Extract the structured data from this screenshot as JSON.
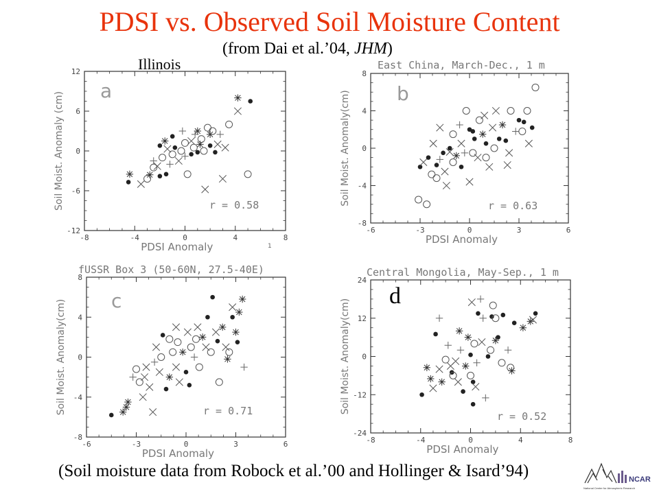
{
  "page": {
    "title": "PDSI vs. Observed Soil Moisture Content",
    "subtitle_prefix": "(from Dai et al.’04, ",
    "subtitle_journal": "JHM",
    "subtitle_suffix": ")",
    "footer": "(Soil moisture data from Robock et al.’00 and Hollinger & Isard’94)",
    "logo_label": "NCAR",
    "logo_subtext": "National Center for Atmospheric Research",
    "colors": {
      "title": "#e8330c",
      "marks": "#222222",
      "axes": "#333333",
      "labels": "#777777"
    }
  },
  "chart_data": [
    {
      "type": "scatter",
      "id": "a",
      "panel_letter": "a",
      "title": "",
      "region_label": "Illinois",
      "xlabel": "PDSI Anomaly",
      "ylabel": "Soil Moist. Anomaly (cm)",
      "xlim": [
        -8,
        8
      ],
      "ylim": [
        -12,
        12
      ],
      "xticks": [
        -8,
        -4,
        0,
        4,
        8
      ],
      "yticks": [
        -12,
        -6,
        0,
        6,
        12
      ],
      "r_label": "r = 0.58",
      "stray_label": "1",
      "grid": false,
      "points": [
        [
          -4.5,
          -4.7,
          "dot"
        ],
        [
          -4.4,
          -3.5,
          "star"
        ],
        [
          -3.5,
          -5.0,
          "x"
        ],
        [
          -3.0,
          -4.2,
          "o"
        ],
        [
          -2.8,
          -3.6,
          "star"
        ],
        [
          -2.5,
          -2.5,
          "o"
        ],
        [
          -2.5,
          -1.5,
          "plus"
        ],
        [
          -2.2,
          -2.3,
          "x"
        ],
        [
          -2.0,
          -3.8,
          "dot"
        ],
        [
          -1.8,
          -1.0,
          "o"
        ],
        [
          -1.6,
          1.5,
          "star"
        ],
        [
          -1.5,
          -3.5,
          "dot"
        ],
        [
          -1.2,
          -2.0,
          "plus"
        ],
        [
          -1.0,
          -0.5,
          "o"
        ],
        [
          -0.8,
          0.5,
          "dot"
        ],
        [
          -0.5,
          -1.5,
          "x"
        ],
        [
          -0.3,
          0.0,
          "o"
        ],
        [
          0.0,
          -0.8,
          "plus"
        ],
        [
          0.2,
          -3.5,
          "o"
        ],
        [
          0.5,
          1.5,
          "x"
        ],
        [
          0.7,
          0.5,
          "o"
        ],
        [
          0.8,
          2.5,
          "plus"
        ],
        [
          1.0,
          -0.2,
          "dot"
        ],
        [
          1.2,
          1.0,
          "star"
        ],
        [
          1.5,
          0.0,
          "o"
        ],
        [
          1.6,
          -5.8,
          "x"
        ],
        [
          1.8,
          3.5,
          "o"
        ],
        [
          2.0,
          2.5,
          "star"
        ],
        [
          2.2,
          3.0,
          "o"
        ],
        [
          2.4,
          -0.2,
          "dot"
        ],
        [
          2.6,
          1.0,
          "x"
        ],
        [
          3.0,
          -4.2,
          "x"
        ],
        [
          3.2,
          0.5,
          "x"
        ],
        [
          3.5,
          4.0,
          "o"
        ],
        [
          4.2,
          6.0,
          "x"
        ],
        [
          4.2,
          8.0,
          "star"
        ],
        [
          5.2,
          7.5,
          "dot"
        ],
        [
          5.0,
          -3.5,
          "o"
        ],
        [
          -1.0,
          2.2,
          "dot"
        ],
        [
          0.0,
          1.2,
          "o"
        ],
        [
          0.5,
          -0.5,
          "dot"
        ],
        [
          -0.2,
          3.0,
          "plus"
        ],
        [
          1.0,
          3.0,
          "star"
        ],
        [
          -2.0,
          0.8,
          "dot"
        ],
        [
          2.8,
          2.5,
          "plus"
        ],
        [
          1.3,
          1.8,
          "o"
        ],
        [
          -1.4,
          0.3,
          "x"
        ],
        [
          2.0,
          0.8,
          "dot"
        ]
      ]
    },
    {
      "type": "scatter",
      "id": "b",
      "panel_letter": "b",
      "title": "East China, March-Dec., 1 m",
      "region_label": "",
      "xlabel": "PDSI Anomaly",
      "ylabel": "Soil Moist. Anomaly(cm)",
      "xlim": [
        -6,
        6
      ],
      "ylim": [
        -8,
        8
      ],
      "xticks": [
        -6,
        -3,
        0,
        3,
        6
      ],
      "yticks": [
        -8,
        -4,
        0,
        4,
        8
      ],
      "r_label": "r = 0.63",
      "stray_label": "",
      "grid": false,
      "points": [
        [
          -3.1,
          -5.5,
          "o"
        ],
        [
          -3.0,
          -2.0,
          "dot"
        ],
        [
          -2.8,
          -1.5,
          "x"
        ],
        [
          -2.6,
          -6.0,
          "o"
        ],
        [
          -2.5,
          -1.0,
          "dot"
        ],
        [
          -2.2,
          0.5,
          "x"
        ],
        [
          -2.0,
          -1.8,
          "dot"
        ],
        [
          -2.0,
          -3.2,
          "o"
        ],
        [
          -1.8,
          -1.2,
          "plus"
        ],
        [
          -1.6,
          -0.5,
          "dot"
        ],
        [
          -1.5,
          -2.5,
          "x"
        ],
        [
          -1.4,
          -4.0,
          "x"
        ],
        [
          -1.2,
          0.0,
          "dot"
        ],
        [
          -1.0,
          -1.5,
          "o"
        ],
        [
          -1.0,
          1.5,
          "o"
        ],
        [
          -0.8,
          -0.8,
          "star"
        ],
        [
          -0.5,
          0.5,
          "x"
        ],
        [
          -0.5,
          -2.0,
          "dot"
        ],
        [
          -0.3,
          -0.5,
          "plus"
        ],
        [
          0.0,
          -3.6,
          "x"
        ],
        [
          0.0,
          2.0,
          "dot"
        ],
        [
          0.2,
          -0.5,
          "o"
        ],
        [
          0.3,
          1.0,
          "dot"
        ],
        [
          0.5,
          -1.0,
          "x"
        ],
        [
          0.6,
          3.0,
          "o"
        ],
        [
          0.8,
          1.5,
          "star"
        ],
        [
          1.0,
          0.5,
          "dot"
        ],
        [
          1.2,
          -2.0,
          "x"
        ],
        [
          1.4,
          2.2,
          "x"
        ],
        [
          1.5,
          0.0,
          "o"
        ],
        [
          1.6,
          4.0,
          "x"
        ],
        [
          1.8,
          1.0,
          "dot"
        ],
        [
          2.0,
          2.5,
          "star"
        ],
        [
          2.2,
          0.8,
          "dot"
        ],
        [
          2.4,
          -0.5,
          "x"
        ],
        [
          2.5,
          4.0,
          "o"
        ],
        [
          2.8,
          1.8,
          "plus"
        ],
        [
          3.0,
          3.0,
          "dot"
        ],
        [
          3.2,
          1.8,
          "o"
        ],
        [
          3.3,
          2.8,
          "dot"
        ],
        [
          3.5,
          4.0,
          "o"
        ],
        [
          3.6,
          0.5,
          "x"
        ],
        [
          3.8,
          2.2,
          "dot"
        ],
        [
          4.0,
          6.5,
          "o"
        ],
        [
          -0.2,
          4.0,
          "o"
        ],
        [
          -1.8,
          2.2,
          "x"
        ],
        [
          -0.6,
          2.5,
          "plus"
        ],
        [
          2.3,
          -1.8,
          "x"
        ],
        [
          1.0,
          -1.0,
          "o"
        ],
        [
          0.2,
          1.8,
          "dot"
        ],
        [
          -2.3,
          -2.8,
          "o"
        ],
        [
          -1.2,
          -0.4,
          "x"
        ],
        [
          0.9,
          3.5,
          "x"
        ]
      ]
    },
    {
      "type": "scatter",
      "id": "c",
      "panel_letter": "c",
      "title": "fUSSR Box 3 (50-60N, 27.5-40E)",
      "region_label": "",
      "xlabel": "PDSI Anomaly",
      "ylabel": "Soil Moist. Anomaly(cm)",
      "xlim": [
        -6,
        6
      ],
      "ylim": [
        -8,
        8
      ],
      "xticks": [
        -6,
        -3,
        0,
        3,
        6
      ],
      "yticks": [
        -8,
        -4,
        0,
        4,
        8
      ],
      "r_label": "r = 0.71",
      "stray_label": "",
      "grid": false,
      "points": [
        [
          -4.5,
          -5.8,
          "dot"
        ],
        [
          -3.8,
          -5.5,
          "star"
        ],
        [
          -3.5,
          -4.5,
          "star"
        ],
        [
          -3.2,
          -2.0,
          "plus"
        ],
        [
          -3.0,
          -1.2,
          "o"
        ],
        [
          -2.8,
          -2.5,
          "o"
        ],
        [
          -2.6,
          -4.0,
          "x"
        ],
        [
          -2.5,
          -2.0,
          "x"
        ],
        [
          -2.2,
          -3.0,
          "x"
        ],
        [
          -2.0,
          -5.5,
          "x"
        ],
        [
          -1.9,
          -0.5,
          "plus"
        ],
        [
          -1.8,
          1.0,
          "x"
        ],
        [
          -1.6,
          -1.5,
          "x"
        ],
        [
          -1.5,
          0.0,
          "o"
        ],
        [
          -1.4,
          2.2,
          "dot"
        ],
        [
          -1.2,
          -3.2,
          "dot"
        ],
        [
          -1.0,
          -2.0,
          "star"
        ],
        [
          -0.8,
          0.5,
          "o"
        ],
        [
          -0.6,
          -1.0,
          "x"
        ],
        [
          -0.5,
          1.5,
          "o"
        ],
        [
          -0.4,
          -2.5,
          "x"
        ],
        [
          -0.2,
          0.5,
          "star"
        ],
        [
          0.0,
          -1.5,
          "dot"
        ],
        [
          0.1,
          2.5,
          "x"
        ],
        [
          0.3,
          1.0,
          "o"
        ],
        [
          0.5,
          0.0,
          "plus"
        ],
        [
          0.7,
          3.0,
          "x"
        ],
        [
          0.8,
          -1.0,
          "o"
        ],
        [
          1.0,
          2.0,
          "star"
        ],
        [
          1.2,
          1.0,
          "x"
        ],
        [
          1.3,
          4.0,
          "dot"
        ],
        [
          1.5,
          0.5,
          "o"
        ],
        [
          1.6,
          6.0,
          "dot"
        ],
        [
          1.8,
          2.5,
          "x"
        ],
        [
          2.0,
          -2.5,
          "o"
        ],
        [
          2.2,
          3.0,
          "star"
        ],
        [
          2.4,
          1.0,
          "x"
        ],
        [
          2.6,
          0.5,
          "o"
        ],
        [
          2.8,
          4.0,
          "dot"
        ],
        [
          3.0,
          2.5,
          "star"
        ],
        [
          3.1,
          1.5,
          "dot"
        ],
        [
          3.2,
          4.5,
          "star"
        ],
        [
          3.4,
          5.8,
          "star"
        ],
        [
          3.5,
          -1.0,
          "plus"
        ],
        [
          2.8,
          5.0,
          "x"
        ],
        [
          -0.6,
          3.0,
          "x"
        ],
        [
          0.2,
          -2.8,
          "dot"
        ],
        [
          1.9,
          1.6,
          "dot"
        ],
        [
          -2.4,
          -1.0,
          "x"
        ],
        [
          2.5,
          -0.2,
          "star"
        ],
        [
          -1.0,
          1.8,
          "o"
        ],
        [
          0.6,
          1.8,
          "o"
        ],
        [
          -3.6,
          -5.0,
          "star"
        ]
      ]
    },
    {
      "type": "scatter",
      "id": "d",
      "panel_letter": "d",
      "title": "Central Mongolia, May-Sep., 1 m",
      "region_label": "",
      "xlabel": "PDSI Anomaly",
      "ylabel": "Soil Moist. Anomaly(cm)",
      "xlim": [
        -8,
        8
      ],
      "ylim": [
        -24,
        24
      ],
      "xticks": [
        -8,
        -4,
        0,
        4,
        8
      ],
      "yticks": [
        -24,
        -12,
        0,
        12,
        24
      ],
      "r_label": "r = 0.52",
      "stray_label": "",
      "grid": false,
      "points": [
        [
          -3.9,
          -12.0,
          "dot"
        ],
        [
          -3.5,
          -3.5,
          "star"
        ],
        [
          -3.2,
          -7.0,
          "star"
        ],
        [
          -3.0,
          -10.0,
          "x"
        ],
        [
          -2.8,
          7.0,
          "dot"
        ],
        [
          -2.5,
          -4.0,
          "x"
        ],
        [
          -2.3,
          -8.0,
          "star"
        ],
        [
          -2.0,
          -1.0,
          "o"
        ],
        [
          -1.8,
          3.5,
          "plus"
        ],
        [
          -1.6,
          -3.0,
          "x"
        ],
        [
          -1.5,
          -5.0,
          "dot"
        ],
        [
          -1.2,
          -1.5,
          "x"
        ],
        [
          -1.0,
          -8.0,
          "x"
        ],
        [
          -0.8,
          2.0,
          "plus"
        ],
        [
          -0.6,
          -11.0,
          "dot"
        ],
        [
          -0.4,
          -3.0,
          "star"
        ],
        [
          -0.2,
          6.0,
          "star"
        ],
        [
          0.0,
          -6.0,
          "o"
        ],
        [
          0.1,
          17.0,
          "x"
        ],
        [
          0.2,
          -8.0,
          "dot"
        ],
        [
          0.3,
          4.0,
          "o"
        ],
        [
          0.5,
          -2.0,
          "plus"
        ],
        [
          0.6,
          13.5,
          "dot"
        ],
        [
          0.8,
          18.0,
          "plus"
        ],
        [
          1.0,
          12.0,
          "plus"
        ],
        [
          1.2,
          -13.0,
          "plus"
        ],
        [
          1.4,
          0.0,
          "dot"
        ],
        [
          1.6,
          2.0,
          "o"
        ],
        [
          1.7,
          12.5,
          "dot"
        ],
        [
          1.8,
          16.0,
          "o"
        ],
        [
          2.0,
          12.0,
          "o"
        ],
        [
          2.2,
          6.0,
          "dot"
        ],
        [
          2.5,
          -2.0,
          "o"
        ],
        [
          2.6,
          13.0,
          "dot"
        ],
        [
          3.0,
          2.0,
          "plus"
        ],
        [
          3.2,
          -3.5,
          "o"
        ],
        [
          3.3,
          -4.5,
          "star"
        ],
        [
          3.5,
          10.5,
          "dot"
        ],
        [
          4.2,
          9.0,
          "star"
        ],
        [
          4.8,
          11.0,
          "star"
        ],
        [
          5.2,
          13.5,
          "dot"
        ],
        [
          -2.5,
          12.0,
          "plus"
        ],
        [
          0.2,
          -15.0,
          "dot"
        ],
        [
          -0.9,
          8.0,
          "star"
        ],
        [
          0.9,
          4.5,
          "x"
        ],
        [
          -1.4,
          -6.0,
          "o"
        ],
        [
          0.4,
          -9.5,
          "x"
        ],
        [
          2.0,
          5.0,
          "star"
        ],
        [
          0.0,
          0.5,
          "dot"
        ],
        [
          5.0,
          11.5,
          "x"
        ]
      ]
    }
  ]
}
